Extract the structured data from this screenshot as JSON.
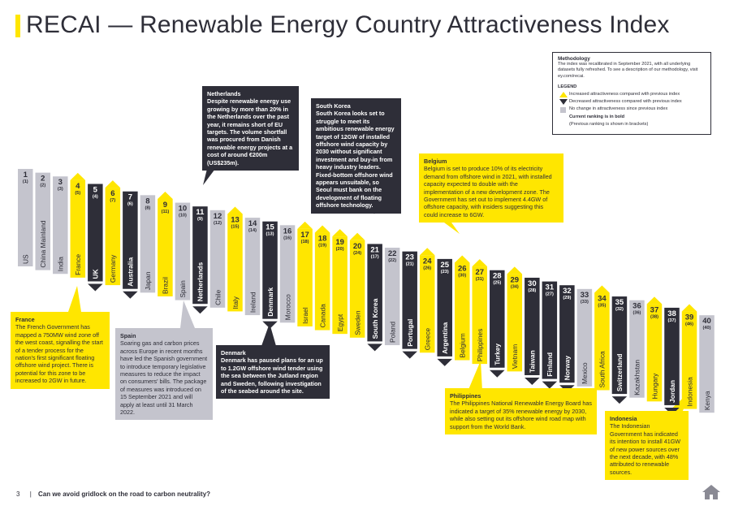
{
  "title": "RECAI — Renewable Energy Country Attractiveness Index",
  "colors": {
    "yellow": "#ffe600",
    "dark": "#2e2e38",
    "gray": "#c4c4cd",
    "text": "#2e2e38"
  },
  "chart_data": {
    "type": "ranking",
    "title": "RECAI — Renewable Energy Country Attractiveness Index",
    "countries": [
      {
        "rank": 1,
        "prev": "(1)",
        "name": "US",
        "change": "same"
      },
      {
        "rank": 2,
        "prev": "(2)",
        "name": "China Mainland",
        "change": "same"
      },
      {
        "rank": 3,
        "prev": "(3)",
        "name": "India",
        "change": "same"
      },
      {
        "rank": 4,
        "prev": "(5)",
        "name": "France",
        "change": "up"
      },
      {
        "rank": 5,
        "prev": "(4)",
        "name": "UK",
        "change": "down"
      },
      {
        "rank": 6,
        "prev": "(7)",
        "name": "Germany",
        "change": "up"
      },
      {
        "rank": 7,
        "prev": "(6)",
        "name": "Australia",
        "change": "down"
      },
      {
        "rank": 8,
        "prev": "(8)",
        "name": "Japan",
        "change": "same"
      },
      {
        "rank": 9,
        "prev": "(11)",
        "name": "Brazil",
        "change": "up"
      },
      {
        "rank": 10,
        "prev": "(10)",
        "name": "Spain",
        "change": "same"
      },
      {
        "rank": 11,
        "prev": "(9)",
        "name": "Netherlands",
        "change": "down"
      },
      {
        "rank": 12,
        "prev": "(12)",
        "name": "Chile",
        "change": "same"
      },
      {
        "rank": 13,
        "prev": "(15)",
        "name": "Italy",
        "change": "up"
      },
      {
        "rank": 14,
        "prev": "(14)",
        "name": "Ireland",
        "change": "same"
      },
      {
        "rank": 15,
        "prev": "(13)",
        "name": "Denmark",
        "change": "down"
      },
      {
        "rank": 16,
        "prev": "(16)",
        "name": "Morocco",
        "change": "same"
      },
      {
        "rank": 17,
        "prev": "(18)",
        "name": "Israel",
        "change": "up"
      },
      {
        "rank": 18,
        "prev": "(19)",
        "name": "Canada",
        "change": "up"
      },
      {
        "rank": 19,
        "prev": "(20)",
        "name": "Egypt",
        "change": "up"
      },
      {
        "rank": 20,
        "prev": "(24)",
        "name": "Sweden",
        "change": "up"
      },
      {
        "rank": 21,
        "prev": "(17)",
        "name": "South Korea",
        "change": "down"
      },
      {
        "rank": 22,
        "prev": "(22)",
        "name": "Poland",
        "change": "same"
      },
      {
        "rank": 23,
        "prev": "(21)",
        "name": "Portugal",
        "change": "down"
      },
      {
        "rank": 24,
        "prev": "(26)",
        "name": "Greece",
        "change": "up"
      },
      {
        "rank": 25,
        "prev": "(23)",
        "name": "Argentina",
        "change": "down"
      },
      {
        "rank": 26,
        "prev": "(30)",
        "name": "Belgium",
        "change": "up"
      },
      {
        "rank": 27,
        "prev": "(31)",
        "name": "Philippines",
        "change": "up"
      },
      {
        "rank": 28,
        "prev": "(25)",
        "name": "Turkey",
        "change": "down"
      },
      {
        "rank": 29,
        "prev": "(34)",
        "name": "Vietnam",
        "change": "up"
      },
      {
        "rank": 30,
        "prev": "(28)",
        "name": "Taiwan",
        "change": "down"
      },
      {
        "rank": 31,
        "prev": "(27)",
        "name": "Finland",
        "change": "down"
      },
      {
        "rank": 32,
        "prev": "(29)",
        "name": "Norway",
        "change": "down"
      },
      {
        "rank": 33,
        "prev": "(33)",
        "name": "Mexico",
        "change": "same"
      },
      {
        "rank": 34,
        "prev": "(35)",
        "name": "South Africa",
        "change": "up"
      },
      {
        "rank": 35,
        "prev": "(32)",
        "name": "Switzerland",
        "change": "down"
      },
      {
        "rank": 36,
        "prev": "(36)",
        "name": "Kazakhstan",
        "change": "same"
      },
      {
        "rank": 37,
        "prev": "(38)",
        "name": "Hungary",
        "change": "up"
      },
      {
        "rank": 38,
        "prev": "(37)",
        "name": "Jordan",
        "change": "down"
      },
      {
        "rank": 39,
        "prev": "(46)",
        "name": "Indonesia",
        "change": "up"
      },
      {
        "rank": 40,
        "prev": "(40)",
        "name": "Kenya",
        "change": "same"
      }
    ]
  },
  "callouts": {
    "netherlands": {
      "title": "Netherlands",
      "text": "Despite renewable energy use growing by more than 20% in the Netherlands over the past year, it remains short of EU targets. The volume shortfall was procured from Danish renewable energy projects at a cost of around €200m (US$235m)."
    },
    "south_korea": {
      "title": "South Korea",
      "text": "South Korea looks set to struggle to meet its ambitious renewable energy target of 12GW of installed offshore wind capacity by 2030 without significant investment and buy-in from heavy industry leaders. Fixed-bottom offshore wind appears unsuitable, so Seoul must bank on the development of floating offshore technology."
    },
    "belgium": {
      "title": "Belgium",
      "text": "Belgium is set to produce 10% of its electricity demand from offshore wind in 2021, with installed capacity expected to double with the implementation of a new development zone. The Government has set out to implement 4.4GW of offshore capacity, with insiders suggesting this could increase to 6GW."
    },
    "france": {
      "title": "France",
      "text": "The French Government has mapped a 750MW wind zone off the west coast, signalling the start of a tender process for the nation's first significant floating offshore wind project. There is potential for this zone to be increased to 2GW in future."
    },
    "spain": {
      "title": "Spain",
      "text": "Soaring gas and carbon prices across Europe in recent months have led the Spanish government to introduce temporary legislative measures to reduce the impact on consumers' bills. The package of measures was introduced on 15 September 2021 and will apply at least until 31 March 2022."
    },
    "denmark": {
      "title": "Denmark",
      "text": "Denmark has paused plans for an up to 1.2GW offshore wind tender using the sea between the Jutland region and Sweden, following investigation of the seabed around the site."
    },
    "philippines": {
      "title": "Philippines",
      "text": "The Philippines National Renewable Energy Board has indicated a target of 35% renewable energy by 2030, while also setting out its offshore wind road map with support from the World Bank."
    },
    "indonesia": {
      "title": "Indonesia",
      "text": "The Indonesian Government has indicated its intention to install 41GW of new power sources over the next decade, with 48% attributed to renewable sources."
    }
  },
  "methodology": {
    "title": "Methodology",
    "text": "The index was recalibrated in September 2021, with all underlying datasets fully refreshed. To see a description of our methodology, visit ey.com/recai.",
    "legend_title": "LEGEND",
    "up": "Increased attractiveness compared with previous index",
    "down": "Decreased attractiveness compared with previous index",
    "same": "No change in attractiveness since previous index",
    "current": "Current ranking is in bold",
    "previous": "(Previous ranking is shown in brackets)"
  },
  "footer": {
    "page": "3",
    "text": "Can we avoid gridlock on the road to carbon neutrality?"
  }
}
